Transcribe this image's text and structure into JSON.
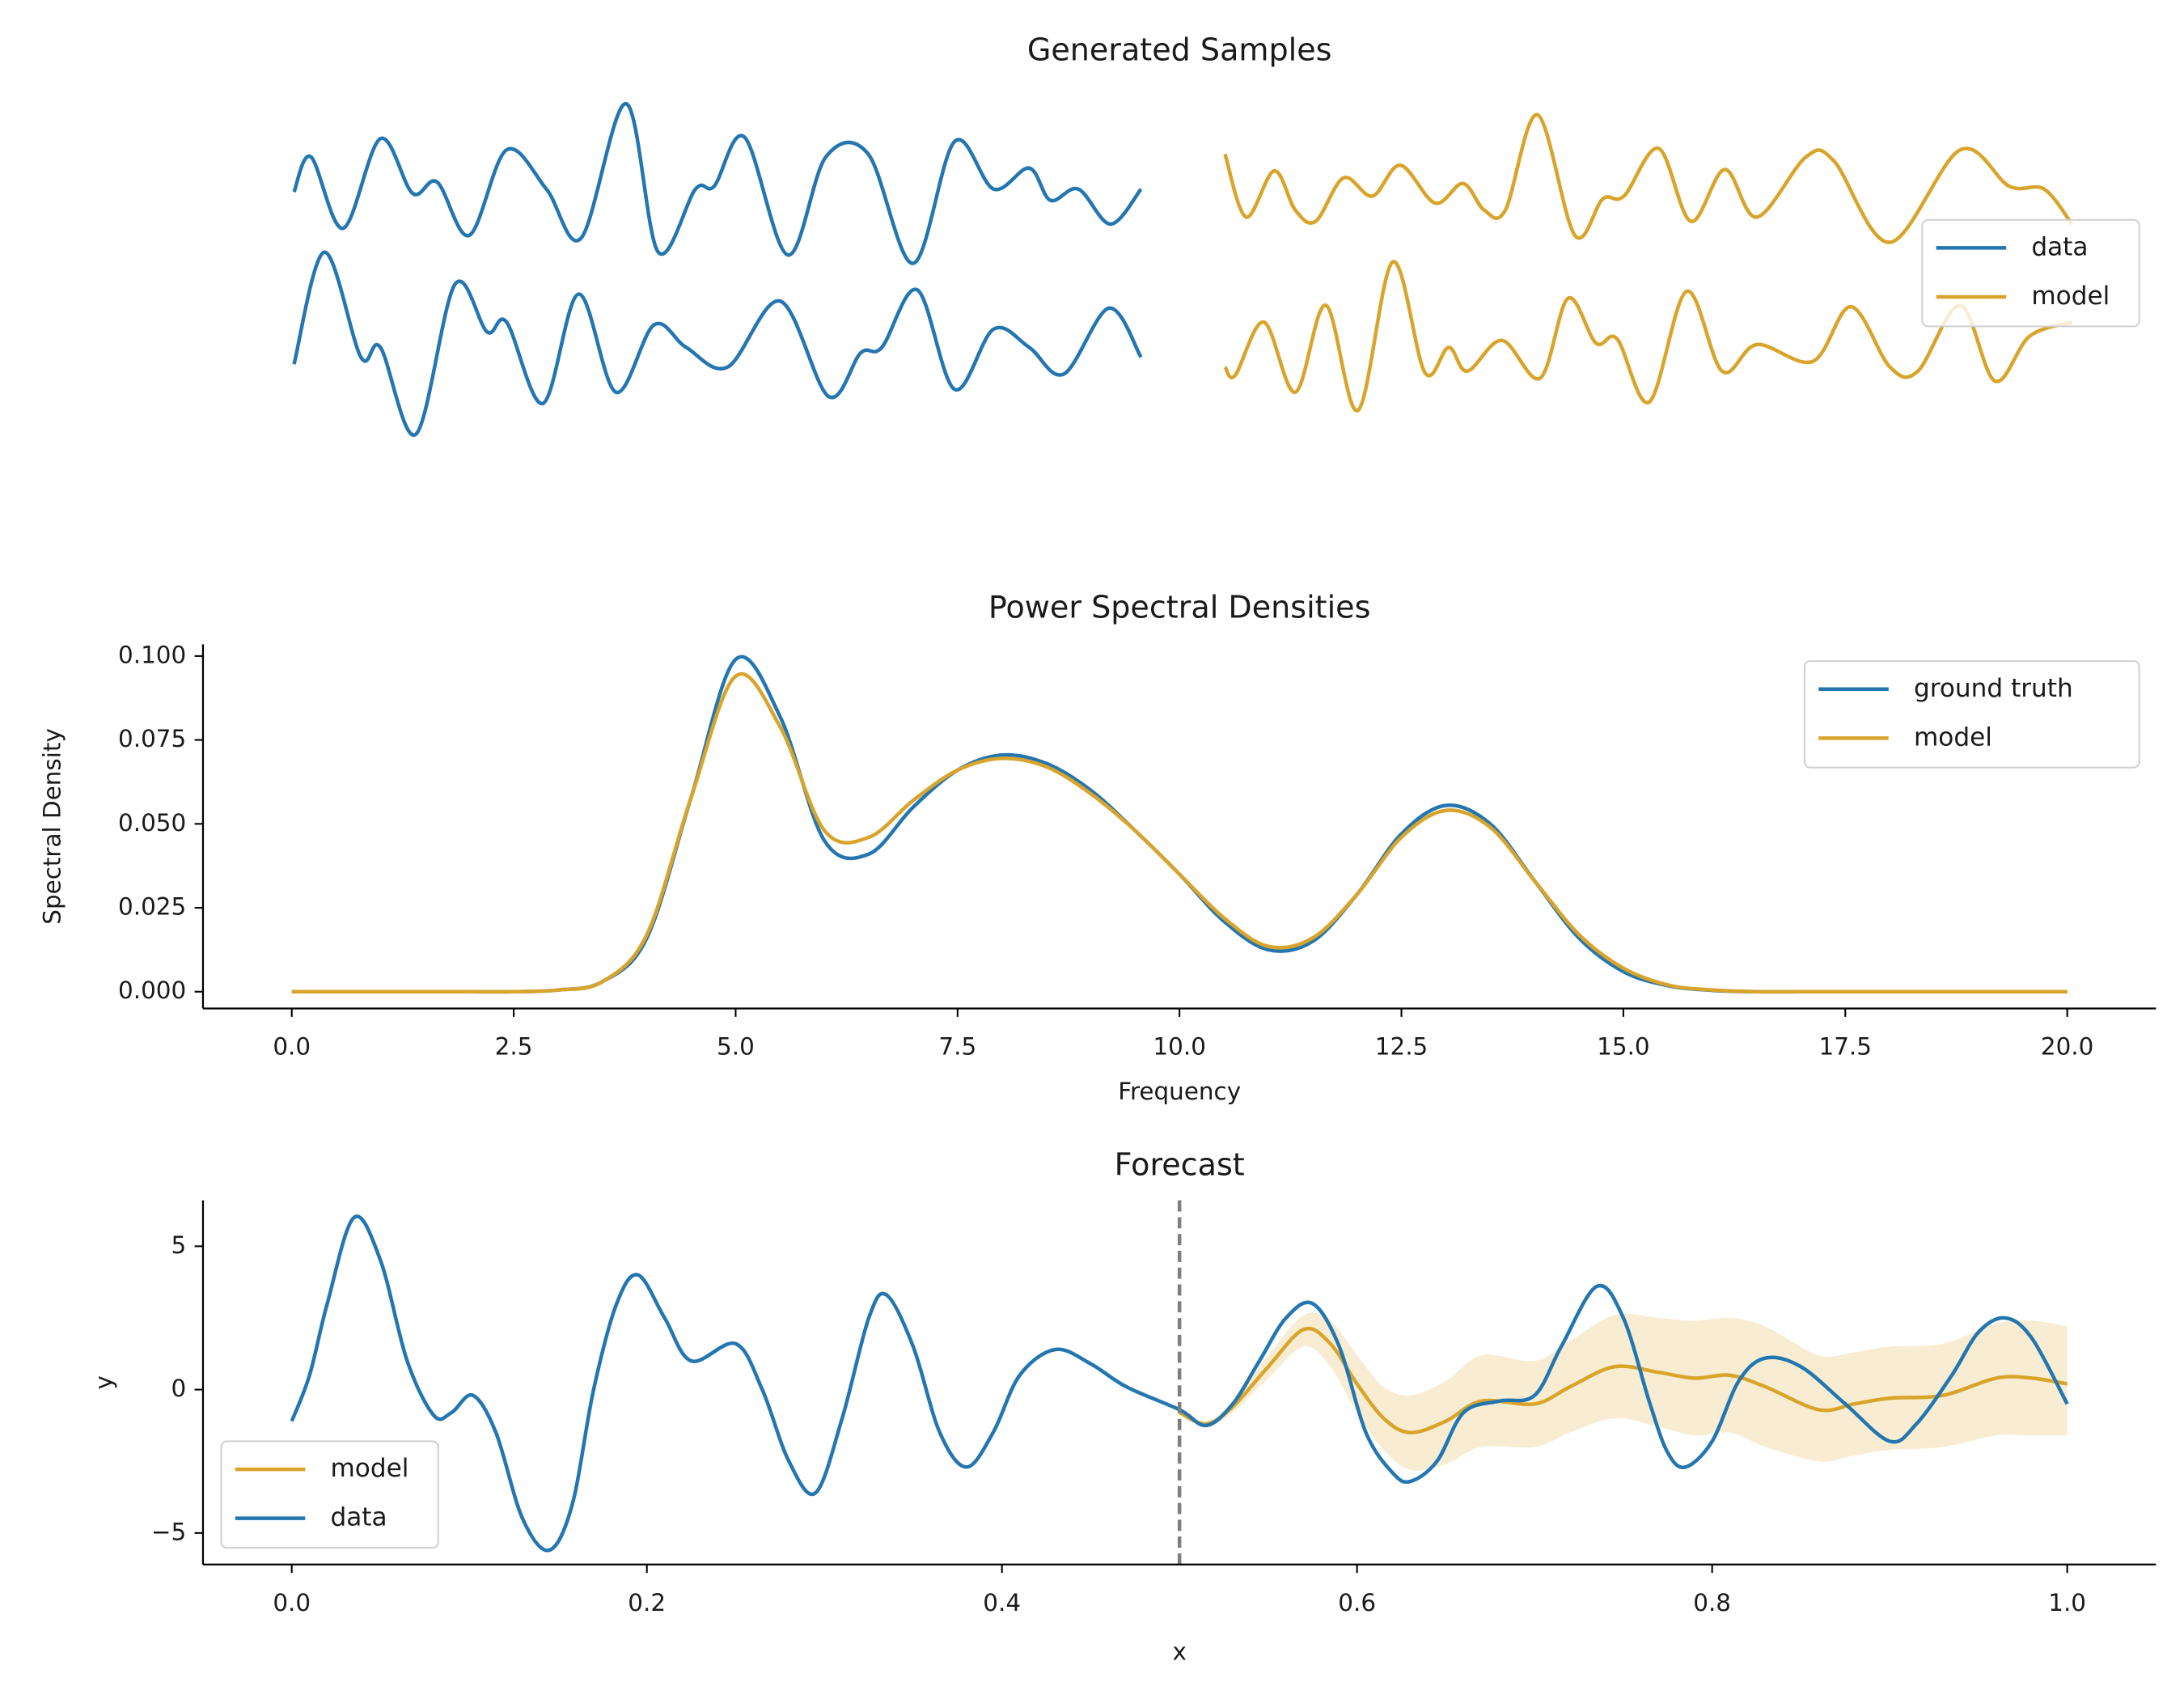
{
  "chart_data": [
    {
      "type": "line",
      "title": "Generated Samples",
      "legend": "center right",
      "series": [
        {
          "name": "data",
          "color": "#2376b0",
          "x": [
            0,
            2,
            5.8,
            10.2,
            14,
            16.9,
            20.7,
            25.1,
            29.8,
            33.9,
            39.2,
            43,
            47.4,
            49.6,
            53.2,
            58.3,
            62.8,
            67.8,
            73.1,
            78,
            82.6,
            86.8,
            89.3,
            92.6,
            96.4,
            100
          ],
          "values": [
            -0.04,
            0.46,
            -0.56,
            0.72,
            -0.06,
            0.1,
            -0.66,
            0.56,
            0,
            -0.7,
            1.22,
            -0.9,
            0,
            0.04,
            0.74,
            -0.94,
            0.46,
            0.5,
            -1.06,
            0.68,
            0,
            0.3,
            -0.16,
            0,
            -0.5,
            0
          ]
        },
        {
          "color": "#2376b0",
          "x": [
            0,
            3.6,
            7.9,
            10.2,
            14.4,
            19,
            22.8,
            25.1,
            29.4,
            33.6,
            38,
            42.5,
            46.3,
            51.2,
            57.4,
            63.1,
            66.9,
            69.4,
            73.6,
            78,
            82.6,
            86.8,
            90.9,
            96.2,
            100
          ],
          "values": [
            -0.3,
            1.3,
            -0.2,
            -0.06,
            -1.3,
            0.84,
            0.16,
            0.3,
            -0.86,
            0.7,
            -0.7,
            0.26,
            -0.06,
            -0.34,
            0.6,
            -0.76,
            -0.14,
            -0.06,
            0.76,
            -0.66,
            0.2,
            -0.06,
            -0.44,
            0.5,
            -0.2
          ]
        },
        {
          "name": "model",
          "color": "#d9a42b",
          "x": [
            0,
            2.5,
            5.8,
            8.3,
            10.7,
            14,
            17.4,
            20.7,
            24.8,
            28.1,
            30.6,
            33.1,
            36.9,
            41.3,
            44.6,
            47.1,
            51.2,
            55,
            59,
            62.8,
            68.6,
            71.9,
            78.5,
            86.8,
            92.6,
            96.7,
            100
          ],
          "values": [
            0.5,
            -0.4,
            0.26,
            -0.3,
            -0.46,
            0.16,
            -0.1,
            0.34,
            -0.2,
            0.08,
            -0.3,
            -0.3,
            1.06,
            -0.66,
            -0.14,
            -0.1,
            0.58,
            -0.46,
            0.28,
            -0.4,
            0.46,
            0.4,
            -0.76,
            0.56,
            0.04,
            0,
            -0.5
          ]
        },
        {
          "color": "#d9a42b",
          "x": [
            0,
            1.2,
            4.6,
            8.3,
            11.9,
            15.7,
            19.8,
            23.6,
            26.4,
            28.6,
            32.7,
            37.2,
            40.5,
            43.8,
            46.3,
            50.1,
            54.5,
            58.7,
            62.8,
            69.4,
            73.9,
            78.5,
            81.8,
            86.8,
            90.9,
            95,
            100
          ],
          "values": [
            -0.34,
            -0.46,
            0.3,
            -0.7,
            0.54,
            -0.96,
            1.16,
            -0.42,
            -0.06,
            -0.4,
            0.04,
            -0.5,
            0.64,
            0,
            0.06,
            -0.84,
            0.74,
            -0.4,
            -0.02,
            -0.26,
            0.52,
            -0.34,
            -0.4,
            0.54,
            -0.54,
            0.1,
            0.3
          ]
        }
      ]
    },
    {
      "type": "line",
      "title": "Power Spectral Densities",
      "xlabel": "Frequency",
      "ylabel": "Spectral Density",
      "legend": "upper right",
      "xlim": [
        -1,
        21
      ],
      "ylim": [
        -0.005,
        0.1035
      ],
      "xticks": [
        {
          "value": 0,
          "label": "0.0"
        },
        {
          "value": 2.5,
          "label": "2.5"
        },
        {
          "value": 5,
          "label": "5.0"
        },
        {
          "value": 7.5,
          "label": "7.5"
        },
        {
          "value": 10,
          "label": "10.0"
        },
        {
          "value": 12.5,
          "label": "12.5"
        },
        {
          "value": 15,
          "label": "15.0"
        },
        {
          "value": 17.5,
          "label": "17.5"
        },
        {
          "value": 20,
          "label": "20.0"
        }
      ],
      "yticks": [
        {
          "value": 0,
          "label": "0.000"
        },
        {
          "value": 0.025,
          "label": "0.025"
        },
        {
          "value": 0.05,
          "label": "0.050"
        },
        {
          "value": 0.075,
          "label": "0.075"
        },
        {
          "value": 0.1,
          "label": "0.100"
        }
      ],
      "x": [
        0,
        0.5,
        1,
        1.5,
        2,
        2.5,
        3,
        3.5,
        4,
        4.5,
        5,
        5.5,
        6,
        6.5,
        7,
        7.5,
        8,
        8.5,
        9,
        9.5,
        10,
        10.5,
        11,
        11.5,
        12,
        12.5,
        13,
        13.5,
        14,
        14.5,
        15,
        15.5,
        16,
        16.5,
        17,
        17.5,
        18,
        18.5,
        19,
        19.5,
        20
      ],
      "series": [
        {
          "name": "ground truth",
          "color": "#2376b0",
          "values": [
            0,
            0,
            0,
            0,
            0,
            0,
            0.0005,
            0.003,
            0.016,
            0.058,
            0.099,
            0.082,
            0.045,
            0.041,
            0.055,
            0.066,
            0.0705,
            0.068,
            0.06,
            0.048,
            0.035,
            0.021,
            0.0125,
            0.015,
            0.029,
            0.047,
            0.0555,
            0.05,
            0.033,
            0.016,
            0.006,
            0.0018,
            0.0004,
            0,
            0,
            0,
            0,
            0,
            0,
            0,
            0
          ]
        },
        {
          "name": "model",
          "color": "#d9a42b",
          "values": [
            0,
            0,
            0,
            0,
            0,
            0,
            0.0005,
            0.003,
            0.017,
            0.058,
            0.094,
            0.079,
            0.048,
            0.046,
            0.057,
            0.066,
            0.0695,
            0.067,
            0.059,
            0.048,
            0.035,
            0.022,
            0.0135,
            0.016,
            0.029,
            0.046,
            0.054,
            0.049,
            0.033,
            0.017,
            0.007,
            0.002,
            0.0005,
            0,
            0,
            0,
            0,
            0,
            0,
            0,
            0
          ]
        }
      ]
    },
    {
      "type": "line",
      "title": "Forecast",
      "xlabel": "x",
      "ylabel": "y",
      "legend": "lower left",
      "xlim": [
        -0.05,
        1.05
      ],
      "ylim": [
        -6.1,
        6.6
      ],
      "xticks": [
        {
          "value": 0,
          "label": "0.0"
        },
        {
          "value": 0.2,
          "label": "0.2"
        },
        {
          "value": 0.4,
          "label": "0.4"
        },
        {
          "value": 0.6,
          "label": "0.6"
        },
        {
          "value": 0.8,
          "label": "0.8"
        },
        {
          "value": 1,
          "label": "1.0"
        }
      ],
      "yticks": [
        5,
        0,
        {
          "value": -5,
          "label": "−5"
        }
      ],
      "vline": 0.5,
      "vline_color": "#7f7f7f",
      "band": {
        "color": "#daa520",
        "opacity": 0.2,
        "x": [
          0.5,
          0.515,
          0.53,
          0.55,
          0.57,
          0.585,
          0.6,
          0.615,
          0.63,
          0.65,
          0.67,
          0.7,
          0.72,
          0.745,
          0.77,
          0.79,
          0.81,
          0.83,
          0.86,
          0.88,
          0.9,
          0.93,
          0.96,
          0.98,
          1.0
        ],
        "lower": [
          -0.85,
          -1.3,
          -0.8,
          0.4,
          1.5,
          0.8,
          -0.8,
          -2.1,
          -2.8,
          -2.6,
          -2.0,
          -2.0,
          -1.5,
          -1.0,
          -1.3,
          -1.6,
          -1.5,
          -2.0,
          -2.5,
          -2.3,
          -2.1,
          -2.0,
          -1.6,
          -1.6,
          -1.6
        ],
        "upper": [
          -0.75,
          -1.1,
          -0.4,
          1.2,
          2.6,
          2.4,
          1.2,
          0.1,
          -0.2,
          0.3,
          1.2,
          1.0,
          1.7,
          2.6,
          2.5,
          2.4,
          2.5,
          2.2,
          1.2,
          1.3,
          1.5,
          1.6,
          2.3,
          2.4,
          2.2
        ]
      },
      "series": [
        {
          "name": "model",
          "color": "#d9a42b",
          "x": [
            0.5,
            0.515,
            0.53,
            0.55,
            0.57,
            0.585,
            0.6,
            0.615,
            0.63,
            0.65,
            0.67,
            0.7,
            0.72,
            0.745,
            0.77,
            0.79,
            0.81,
            0.83,
            0.86,
            0.88,
            0.9,
            0.93,
            0.96,
            0.98,
            1.0
          ],
          "values": [
            -0.8,
            -1.2,
            -0.6,
            0.8,
            2.1,
            1.6,
            0.2,
            -1,
            -1.5,
            -1.1,
            -0.4,
            -0.5,
            0.1,
            0.8,
            0.6,
            0.4,
            0.5,
            0.1,
            -0.7,
            -0.5,
            -0.3,
            -0.2,
            0.4,
            0.4,
            0.2
          ]
        },
        {
          "name": "data",
          "color": "#2376b0",
          "x": [
            0,
            0.01,
            0.02,
            0.035,
            0.05,
            0.065,
            0.08,
            0.09,
            0.102,
            0.115,
            0.13,
            0.145,
            0.158,
            0.17,
            0.183,
            0.195,
            0.21,
            0.225,
            0.25,
            0.265,
            0.28,
            0.295,
            0.31,
            0.325,
            0.335,
            0.35,
            0.365,
            0.38,
            0.395,
            0.41,
            0.43,
            0.45,
            0.47,
            0.5,
            0.515,
            0.53,
            0.545,
            0.56,
            0.575,
            0.59,
            0.605,
            0.62,
            0.63,
            0.645,
            0.66,
            0.68,
            0.7,
            0.715,
            0.735,
            0.75,
            0.765,
            0.775,
            0.785,
            0.8,
            0.815,
            0.83,
            0.85,
            0.875,
            0.9,
            0.915,
            0.935,
            0.95,
            0.965,
            0.98,
            1.0
          ],
          "values": [
            -1.1,
            0.5,
            3,
            6,
            4.5,
            1,
            -0.9,
            -0.8,
            -0.2,
            -1.5,
            -4.5,
            -5.6,
            -4,
            0,
            3,
            4,
            2.5,
            1,
            1.6,
            0,
            -2.5,
            -3.6,
            -1,
            2.5,
            3.3,
            1.5,
            -1.5,
            -2.7,
            -1.5,
            0.5,
            1.4,
            0.9,
            0.1,
            -0.7,
            -1.25,
            -0.5,
            1,
            2.5,
            3,
            1.5,
            -1.5,
            -2.9,
            -3.2,
            -2.5,
            -0.8,
            -0.4,
            -0.2,
            1.5,
            3.6,
            2.5,
            -0.5,
            -2.2,
            -2.7,
            -1.8,
            0.3,
            1.1,
            0.8,
            -0.5,
            -1.8,
            -1.2,
            0.5,
            2,
            2.5,
            1.8,
            -0.5
          ]
        }
      ]
    }
  ]
}
